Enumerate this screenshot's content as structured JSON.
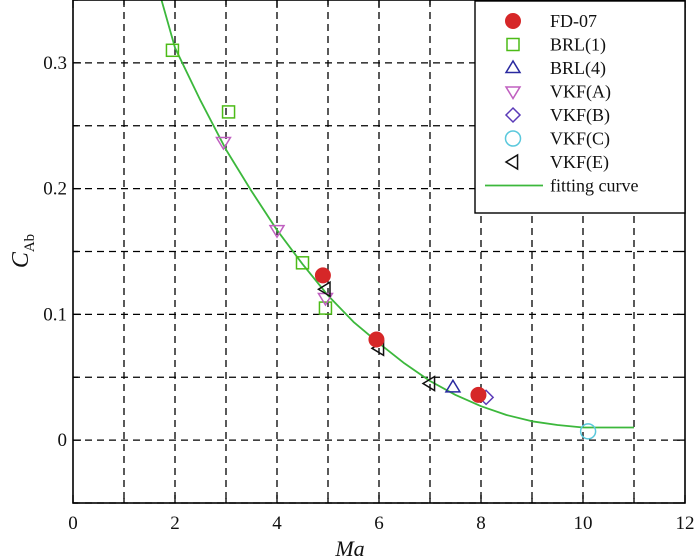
{
  "chart_data": {
    "type": "scatter",
    "title": "",
    "xlabel": "Ma",
    "ylabel_main": "C",
    "ylabel_sub": "Ab",
    "xlim": [
      0,
      12
    ],
    "ylim": [
      -0.05,
      0.35
    ],
    "xticks": [
      0,
      2,
      4,
      6,
      8,
      10,
      12
    ],
    "yticks": [
      0,
      0.1,
      0.2,
      0.3
    ],
    "ytick_labels": [
      "0",
      "0.1",
      "0.2",
      "0.3"
    ],
    "grid": true,
    "grid_style": "dashed",
    "legend_position": "top-right",
    "series": [
      {
        "name": "FD-07",
        "marker": "circle-filled",
        "color": "#d62728",
        "points": [
          [
            4.9,
            0.131
          ],
          [
            5.95,
            0.08
          ],
          [
            7.95,
            0.036
          ]
        ]
      },
      {
        "name": "BRL(1)",
        "marker": "square-open",
        "color": "#4cbb17",
        "points": [
          [
            1.95,
            0.31
          ],
          [
            3.05,
            0.261
          ],
          [
            4.5,
            0.141
          ],
          [
            4.95,
            0.105
          ]
        ]
      },
      {
        "name": "BRL(4)",
        "marker": "triangle-up-open",
        "color": "#2a2aa0",
        "points": [
          [
            7.45,
            0.042
          ]
        ]
      },
      {
        "name": "VKF(A)",
        "marker": "triangle-down-open",
        "color": "#c060c0",
        "points": [
          [
            2.95,
            0.237
          ],
          [
            4.0,
            0.167
          ],
          [
            4.95,
            0.113
          ]
        ]
      },
      {
        "name": "VKF(B)",
        "marker": "diamond-open",
        "color": "#5a3ab8",
        "points": [
          [
            8.1,
            0.034
          ]
        ]
      },
      {
        "name": "VKF(C)",
        "marker": "circle-open",
        "color": "#5ac8dc",
        "points": [
          [
            10.1,
            0.007
          ]
        ]
      },
      {
        "name": "VKF(E)",
        "marker": "triangle-left-open",
        "color": "#111111",
        "points": [
          [
            4.95,
            0.12
          ],
          [
            6.0,
            0.073
          ],
          [
            7.0,
            0.045
          ]
        ]
      },
      {
        "name": "fitting curve",
        "type": "line",
        "color": "#3cb83c",
        "x": [
          1.7,
          2.0,
          2.5,
          3.0,
          3.5,
          4.0,
          4.5,
          5.0,
          5.5,
          6.0,
          6.5,
          7.0,
          7.5,
          8.0,
          8.5,
          9.0,
          9.5,
          10.0,
          10.5,
          11.0
        ],
        "y": [
          0.355,
          0.312,
          0.27,
          0.231,
          0.198,
          0.167,
          0.14,
          0.115,
          0.094,
          0.077,
          0.061,
          0.047,
          0.036,
          0.027,
          0.02,
          0.015,
          0.012,
          0.01,
          0.01,
          0.01
        ]
      }
    ]
  }
}
